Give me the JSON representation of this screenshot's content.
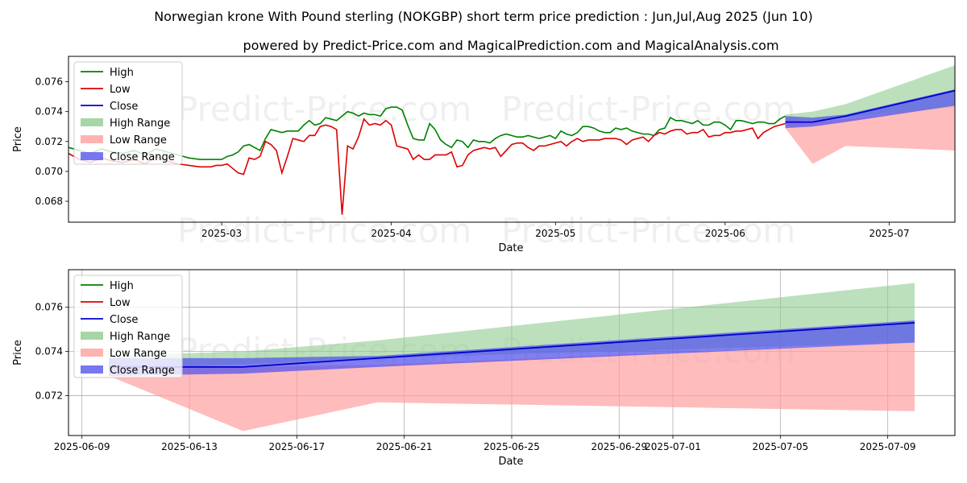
{
  "header": {
    "title": "Norwegian krone With Pound sterling (NOKGBP) short term price prediction : Jun,Jul,Aug 2025 (Jun 10)",
    "subtitle": "powered by Predict-Price.com and MagicalPrediction.com and MagicalAnalysis.com"
  },
  "watermark": "Predict-Price.com",
  "colors": {
    "high": "#008000",
    "low": "#dd0000",
    "close": "#0000cc",
    "high_range": "#90cc90",
    "low_range": "#ff9f9f",
    "close_range": "#5555ee"
  },
  "legend": [
    "High",
    "Low",
    "Close",
    "High Range",
    "Low Range",
    "Close Range"
  ],
  "chart_data": [
    {
      "type": "line",
      "xlabel": "Date",
      "ylabel": "Price",
      "x_ticks": [
        "2025-03",
        "2025-04",
        "2025-05",
        "2025-06",
        "2025-07"
      ],
      "x_tick_days": [
        28,
        59,
        89,
        120,
        150
      ],
      "xlim_days": [
        0,
        162
      ],
      "y_ticks": [
        "0.068",
        "0.070",
        "0.072",
        "0.074",
        "0.076"
      ],
      "ylim": [
        0.0666,
        0.0777
      ],
      "legend_position": "upper-left",
      "grid": false,
      "history": {
        "days": [
          0,
          2,
          4,
          6,
          8,
          10,
          12,
          14,
          16,
          18,
          20,
          22,
          24,
          26,
          27,
          28,
          29,
          30,
          31,
          32,
          33,
          34,
          35,
          36,
          37,
          38,
          39,
          40,
          41,
          42,
          43,
          44,
          45,
          46,
          47,
          48,
          49,
          50,
          51,
          52,
          53,
          54,
          55,
          56,
          57,
          58,
          59,
          60,
          61,
          62,
          63,
          64,
          65,
          66,
          67,
          68,
          69,
          70,
          71,
          72,
          73,
          74,
          75,
          76,
          77,
          78,
          79,
          80,
          81,
          82,
          83,
          84,
          85,
          86,
          87,
          88,
          89,
          90,
          91,
          92,
          93,
          94,
          95,
          96,
          97,
          98,
          99,
          100,
          101,
          102,
          103,
          104,
          105,
          106,
          107,
          108,
          109,
          110,
          111,
          112,
          113,
          114,
          115,
          116,
          117,
          118,
          119,
          120,
          121,
          122,
          123,
          124,
          125,
          126,
          127,
          128,
          129,
          130,
          131
        ],
        "high": [
          0.0716,
          0.0714,
          0.0712,
          0.0715,
          0.0713,
          0.0712,
          0.0714,
          0.0711,
          0.0715,
          0.0713,
          0.0711,
          0.0709,
          0.0708,
          0.0708,
          0.0708,
          0.0708,
          0.071,
          0.0711,
          0.0713,
          0.0717,
          0.0718,
          0.0716,
          0.0714,
          0.0722,
          0.0728,
          0.0727,
          0.0726,
          0.0727,
          0.0727,
          0.0727,
          0.0731,
          0.0734,
          0.0731,
          0.0732,
          0.0736,
          0.0735,
          0.0734,
          0.0737,
          0.074,
          0.0739,
          0.0737,
          0.0739,
          0.0738,
          0.0738,
          0.0737,
          0.0742,
          0.0743,
          0.0743,
          0.0741,
          0.0731,
          0.0722,
          0.0721,
          0.0721,
          0.0732,
          0.0728,
          0.0721,
          0.0718,
          0.0716,
          0.0721,
          0.072,
          0.0716,
          0.0721,
          0.072,
          0.072,
          0.0719,
          0.0722,
          0.0724,
          0.0725,
          0.0724,
          0.0723,
          0.0723,
          0.0724,
          0.0723,
          0.0722,
          0.0723,
          0.0724,
          0.0722,
          0.0727,
          0.0725,
          0.0724,
          0.0726,
          0.073,
          0.073,
          0.0729,
          0.0727,
          0.0726,
          0.0726,
          0.0729,
          0.0728,
          0.0729,
          0.0727,
          0.0726,
          0.0725,
          0.0725,
          0.0724,
          0.0728,
          0.0729,
          0.0736,
          0.0734,
          0.0734,
          0.0733,
          0.0732,
          0.0734,
          0.0731,
          0.0731,
          0.0733,
          0.0733,
          0.0731,
          0.0728,
          0.0734,
          0.0734,
          0.0733,
          0.0732,
          0.0733,
          0.0733,
          0.0732,
          0.0732,
          0.0735,
          0.0737
        ],
        "low": [
          0.0712,
          0.0708,
          0.0706,
          0.0709,
          0.0707,
          0.0706,
          0.0708,
          0.0705,
          0.071,
          0.0707,
          0.0705,
          0.0704,
          0.0703,
          0.0703,
          0.0704,
          0.0704,
          0.0705,
          0.0702,
          0.0699,
          0.0698,
          0.0709,
          0.0708,
          0.071,
          0.072,
          0.0718,
          0.0714,
          0.0699,
          0.071,
          0.0722,
          0.0721,
          0.072,
          0.0724,
          0.0724,
          0.073,
          0.0731,
          0.073,
          0.0728,
          0.0671,
          0.0717,
          0.0715,
          0.0723,
          0.0735,
          0.0731,
          0.0732,
          0.0731,
          0.0734,
          0.0731,
          0.0717,
          0.0716,
          0.0715,
          0.0708,
          0.0711,
          0.0708,
          0.0708,
          0.0711,
          0.0711,
          0.0711,
          0.0713,
          0.0703,
          0.0704,
          0.0711,
          0.0714,
          0.0715,
          0.0716,
          0.0715,
          0.0716,
          0.071,
          0.0714,
          0.0718,
          0.0719,
          0.0719,
          0.0716,
          0.0714,
          0.0717,
          0.0717,
          0.0718,
          0.0719,
          0.072,
          0.0717,
          0.072,
          0.0722,
          0.072,
          0.0721,
          0.0721,
          0.0721,
          0.0722,
          0.0722,
          0.0722,
          0.0721,
          0.0718,
          0.0721,
          0.0722,
          0.0723,
          0.072,
          0.0724,
          0.0726,
          0.0725,
          0.0727,
          0.0728,
          0.0728,
          0.0725,
          0.0726,
          0.0726,
          0.0728,
          0.0723,
          0.0724,
          0.0724,
          0.0726,
          0.0726,
          0.0727,
          0.0727,
          0.0728,
          0.0729,
          0.0722,
          0.0726,
          0.0728,
          0.073,
          0.0731,
          0.0732
        ]
      },
      "forecast": {
        "days": [
          131,
          136,
          142,
          162
        ],
        "high_range": [
          [
            0.0734,
            0.0738
          ],
          [
            0.0734,
            0.074
          ],
          [
            0.0736,
            0.0745
          ],
          [
            0.0743,
            0.0771
          ]
        ],
        "low_range": [
          [
            0.0729,
            0.0735
          ],
          [
            0.0705,
            0.0733
          ],
          [
            0.0717,
            0.0735
          ],
          [
            0.0714,
            0.0744
          ]
        ],
        "close_range": [
          [
            0.0729,
            0.0737
          ],
          [
            0.073,
            0.0736
          ],
          [
            0.0733,
            0.0738
          ],
          [
            0.0744,
            0.0755
          ]
        ],
        "close": [
          0.0733,
          0.0733,
          0.0737,
          0.0754
        ]
      }
    },
    {
      "type": "line",
      "xlabel": "Date",
      "ylabel": "Price",
      "x_ticks": [
        "2025-06-09",
        "2025-06-13",
        "2025-06-17",
        "2025-06-21",
        "2025-06-25",
        "2025-06-29",
        "2025-07-01",
        "2025-07-05",
        "2025-07-09"
      ],
      "x_tick_days": [
        0,
        4,
        8,
        12,
        16,
        20,
        22,
        26,
        30
      ],
      "xlim_days": [
        -0.5,
        32.5
      ],
      "y_ticks": [
        "0.072",
        "0.074",
        "0.076"
      ],
      "ylim": [
        0.0702,
        0.0777
      ],
      "legend_position": "upper-left",
      "grid": true,
      "forecast": {
        "days": [
          1,
          6,
          11,
          31
        ],
        "high_range": [
          [
            0.0733,
            0.0738
          ],
          [
            0.0734,
            0.074
          ],
          [
            0.0737,
            0.0745
          ],
          [
            0.0744,
            0.0771
          ]
        ],
        "low_range": [
          [
            0.0729,
            0.0735
          ],
          [
            0.0704,
            0.0733
          ],
          [
            0.0717,
            0.0734
          ],
          [
            0.0713,
            0.0744
          ]
        ],
        "close_range": [
          [
            0.0729,
            0.0737
          ],
          [
            0.073,
            0.0737
          ],
          [
            0.0733,
            0.0738
          ],
          [
            0.0744,
            0.0754
          ]
        ],
        "close": [
          0.0733,
          0.0733,
          0.0737,
          0.0753
        ]
      }
    }
  ]
}
